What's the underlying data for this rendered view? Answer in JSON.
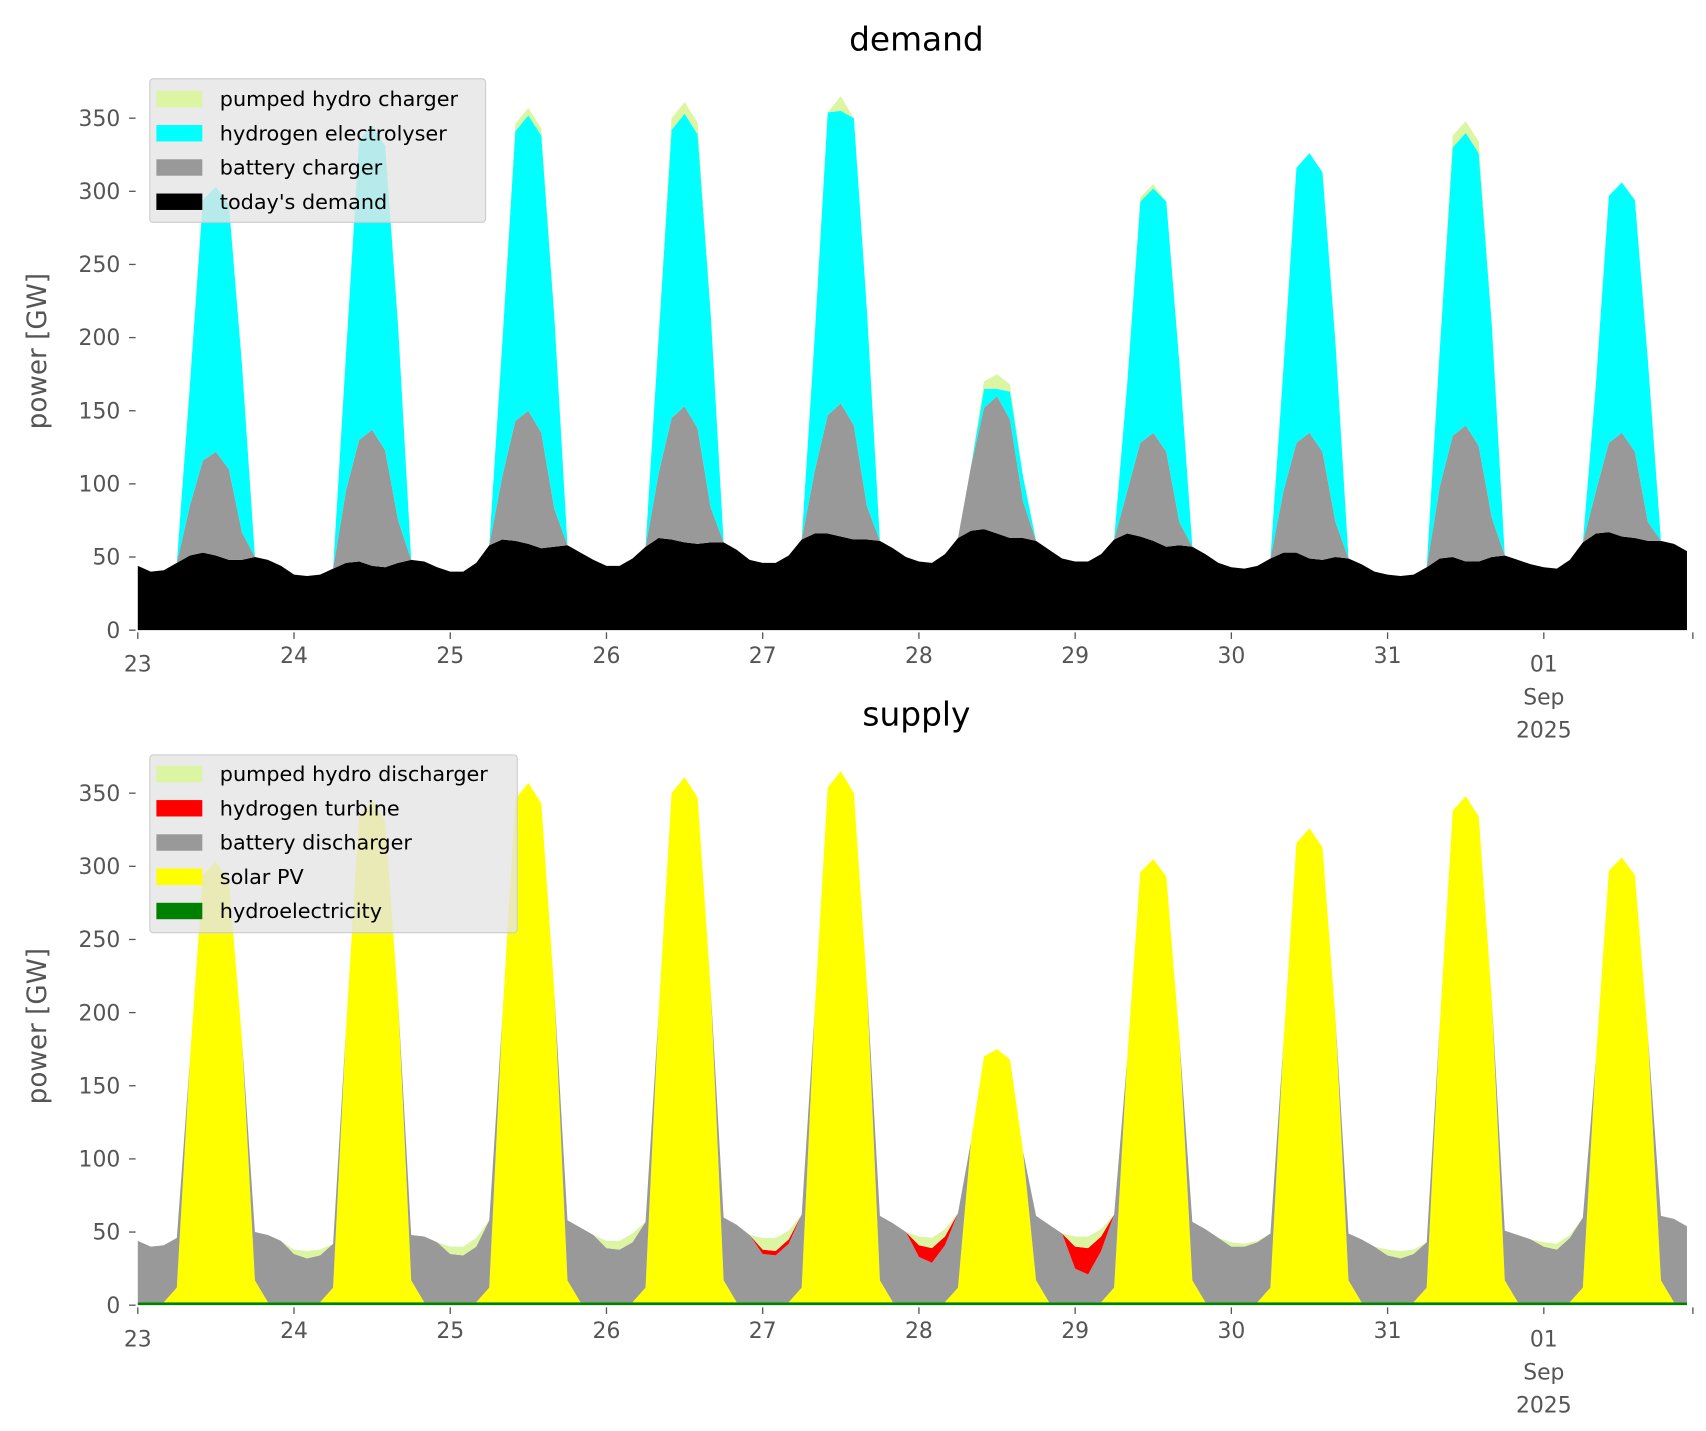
{
  "chart_data": [
    {
      "type": "area",
      "title": "demand",
      "ylabel": "power [GW]",
      "xlabel": "",
      "ylim": [
        0,
        385
      ],
      "start": "2025-08-23 00:00",
      "step_hours": 2,
      "xticks": [
        "23",
        "24",
        "25",
        "26",
        "27",
        "28",
        "29",
        "30",
        "31",
        "01"
      ],
      "xtick_sub": [
        "Sep",
        "2025"
      ],
      "yticks": [
        0,
        50,
        100,
        150,
        200,
        250,
        300,
        350
      ],
      "legend_position": "top-left",
      "series": [
        {
          "name": "today's demand",
          "color": "#000000",
          "values": [
            44,
            40,
            41,
            46,
            51,
            53,
            51,
            48,
            48,
            50,
            48,
            44,
            38,
            37,
            38,
            42,
            46,
            47,
            44,
            43,
            46,
            48,
            47,
            43,
            40,
            40,
            46,
            58,
            62,
            61,
            59,
            56,
            57,
            58,
            53,
            48,
            44,
            44,
            49,
            57,
            63,
            62,
            60,
            59,
            60,
            60,
            55,
            48,
            46,
            46,
            51,
            62,
            66,
            66,
            64,
            62,
            62,
            61,
            56,
            50,
            47,
            46,
            52,
            63,
            68,
            69,
            66,
            63,
            63,
            61,
            55,
            49,
            47,
            47,
            52,
            62,
            66,
            64,
            61,
            57,
            58,
            57,
            52,
            46,
            43,
            42,
            44,
            49,
            53,
            53,
            49,
            48,
            50,
            49,
            45,
            40,
            38,
            37,
            38,
            43,
            49,
            50,
            47,
            47,
            50,
            51,
            48,
            45,
            43,
            42,
            48,
            60,
            66,
            67,
            64,
            63,
            61,
            61,
            59,
            54
          ]
        },
        {
          "name": "battery charger",
          "color": "#999999",
          "values": [
            0,
            0,
            0,
            0,
            34,
            63,
            71,
            62,
            19,
            0,
            0,
            0,
            0,
            0,
            0,
            0,
            50,
            83,
            93,
            80,
            29,
            0,
            0,
            0,
            0,
            0,
            0,
            0,
            43,
            82,
            91,
            79,
            26,
            0,
            0,
            0,
            0,
            0,
            0,
            0,
            44,
            83,
            93,
            79,
            24,
            0,
            0,
            0,
            0,
            0,
            0,
            0,
            43,
            81,
            91,
            78,
            23,
            0,
            0,
            0,
            0,
            0,
            0,
            0,
            44,
            83,
            94,
            81,
            25,
            0,
            0,
            0,
            0,
            0,
            0,
            0,
            29,
            64,
            74,
            65,
            16,
            0,
            0,
            0,
            0,
            0,
            0,
            0,
            42,
            75,
            86,
            74,
            24,
            0,
            0,
            0,
            0,
            0,
            0,
            0,
            49,
            83,
            93,
            79,
            27,
            0,
            0,
            0,
            0,
            0,
            0,
            0,
            29,
            61,
            71,
            59,
            13,
            0,
            0,
            0
          ]
        },
        {
          "name": "hydrogen electrolyser",
          "color": "#00ffff",
          "values": [
            0,
            0,
            0,
            0,
            82,
            178,
            181,
            181,
            115,
            0,
            0,
            0,
            0,
            0,
            0,
            0,
            94,
            205,
            208,
            208,
            132,
            0,
            0,
            0,
            0,
            0,
            0,
            0,
            91,
            198,
            202,
            203,
            131,
            0,
            0,
            0,
            0,
            0,
            0,
            0,
            92,
            197,
            200,
            201,
            133,
            0,
            0,
            0,
            0,
            0,
            0,
            0,
            92,
            207,
            200,
            210,
            134,
            0,
            0,
            0,
            0,
            0,
            0,
            0,
            0,
            13,
            5,
            19,
            17,
            0,
            0,
            0,
            0,
            0,
            0,
            0,
            73,
            165,
            167,
            171,
            109,
            0,
            0,
            0,
            0,
            0,
            0,
            0,
            84,
            188,
            191,
            191,
            122,
            0,
            0,
            0,
            0,
            0,
            0,
            0,
            93,
            197,
            200,
            200,
            132,
            0,
            0,
            0,
            0,
            0,
            0,
            0,
            73,
            169,
            171,
            172,
            110,
            0,
            0,
            0
          ]
        },
        {
          "name": "pumped hydro charger",
          "color": "#dbf5a3",
          "values": [
            0,
            0,
            0,
            0,
            0,
            0,
            0,
            0,
            0,
            0,
            0,
            0,
            0,
            0,
            0,
            0,
            0,
            0,
            0,
            0,
            0,
            0,
            0,
            0,
            0,
            0,
            0,
            0,
            0,
            5,
            5,
            5,
            0,
            0,
            0,
            0,
            0,
            0,
            0,
            0,
            0,
            8,
            8,
            8,
            0,
            0,
            0,
            0,
            0,
            0,
            0,
            0,
            0,
            0,
            10,
            0,
            0,
            0,
            0,
            0,
            0,
            0,
            0,
            0,
            0,
            5,
            10,
            5,
            0,
            0,
            0,
            0,
            0,
            0,
            0,
            0,
            0,
            3,
            3,
            0,
            0,
            0,
            0,
            0,
            0,
            0,
            0,
            0,
            0,
            0,
            0,
            0,
            0,
            0,
            0,
            0,
            0,
            0,
            0,
            0,
            0,
            8,
            8,
            8,
            0,
            0,
            0,
            0,
            0,
            0,
            0,
            0,
            0,
            0,
            0,
            0,
            0,
            0,
            0,
            0
          ]
        }
      ]
    },
    {
      "type": "area",
      "title": "supply",
      "ylabel": "power [GW]",
      "xlabel": "",
      "ylim": [
        0,
        385
      ],
      "start": "2025-08-23 00:00",
      "step_hours": 2,
      "xticks": [
        "23",
        "24",
        "25",
        "26",
        "27",
        "28",
        "29",
        "30",
        "31",
        "01"
      ],
      "xtick_sub": [
        "Sep",
        "2025"
      ],
      "yticks": [
        0,
        50,
        100,
        150,
        200,
        250,
        300,
        350
      ],
      "legend_position": "top-left",
      "series": [
        {
          "name": "hydroelectricity",
          "color": "#008000",
          "values": [
            2,
            2,
            2,
            2,
            2,
            2,
            2,
            2,
            2,
            2,
            2,
            2,
            2,
            2,
            2,
            2,
            2,
            2,
            2,
            2,
            2,
            2,
            2,
            2,
            2,
            2,
            2,
            2,
            2,
            2,
            2,
            2,
            2,
            2,
            2,
            2,
            2,
            2,
            2,
            2,
            2,
            2,
            2,
            2,
            2,
            2,
            2,
            2,
            2,
            2,
            2,
            2,
            2,
            2,
            2,
            2,
            2,
            2,
            2,
            2,
            2,
            2,
            2,
            2,
            2,
            2,
            2,
            2,
            2,
            2,
            2,
            2,
            2,
            2,
            2,
            2,
            2,
            2,
            2,
            2,
            2,
            2,
            2,
            2,
            2,
            2,
            2,
            2,
            2,
            2,
            2,
            2,
            2,
            2,
            2,
            2,
            2,
            2,
            2,
            2,
            2,
            2,
            2,
            2,
            2,
            2,
            2,
            2,
            2,
            2,
            2,
            2,
            2,
            2,
            2,
            2,
            2,
            2,
            2,
            2
          ]
        },
        {
          "name": "solar PV",
          "color": "#ffff00",
          "values": [
            0,
            0,
            0,
            10,
            165,
            292,
            301,
            289,
            180,
            15,
            0,
            0,
            0,
            0,
            0,
            10,
            188,
            333,
            343,
            329,
            205,
            15,
            0,
            0,
            0,
            0,
            0,
            10,
            194,
            344,
            355,
            341,
            212,
            15,
            0,
            0,
            0,
            0,
            0,
            10,
            197,
            348,
            359,
            345,
            215,
            15,
            0,
            0,
            0,
            0,
            0,
            10,
            199,
            352,
            363,
            348,
            217,
            15,
            0,
            0,
            0,
            0,
            0,
            10,
            110,
            168,
            173,
            166,
            103,
            15,
            0,
            0,
            0,
            0,
            0,
            10,
            166,
            294,
            303,
            291,
            181,
            15,
            0,
            0,
            0,
            0,
            0,
            10,
            177,
            314,
            324,
            311,
            194,
            15,
            0,
            0,
            0,
            0,
            0,
            10,
            189,
            336,
            346,
            332,
            207,
            15,
            0,
            0,
            0,
            0,
            0,
            10,
            166,
            295,
            304,
            292,
            182,
            15,
            0,
            0
          ]
        },
        {
          "name": "battery discharger",
          "color": "#999999",
          "values": [
            42,
            38,
            39,
            34,
            0,
            0,
            0,
            0,
            0,
            33,
            46,
            42,
            33,
            30,
            32,
            30,
            0,
            0,
            0,
            0,
            0,
            31,
            45,
            41,
            33,
            32,
            38,
            46,
            0,
            0,
            0,
            0,
            0,
            41,
            51,
            46,
            37,
            36,
            41,
            45,
            0,
            0,
            0,
            0,
            0,
            43,
            53,
            46,
            33,
            32,
            40,
            50,
            0,
            0,
            0,
            0,
            0,
            44,
            54,
            48,
            31,
            27,
            39,
            51,
            0,
            0,
            0,
            0,
            0,
            44,
            53,
            47,
            23,
            19,
            35,
            50,
            0,
            0,
            0,
            0,
            0,
            40,
            50,
            44,
            38,
            38,
            41,
            37,
            0,
            0,
            0,
            0,
            0,
            32,
            43,
            38,
            32,
            30,
            33,
            31,
            0,
            0,
            0,
            0,
            0,
            34,
            46,
            43,
            38,
            36,
            44,
            48,
            0,
            0,
            0,
            0,
            0,
            44,
            57,
            52
          ]
        },
        {
          "name": "hydrogen turbine",
          "color": "#ff0000",
          "values": [
            0,
            0,
            0,
            0,
            0,
            0,
            0,
            0,
            0,
            0,
            0,
            0,
            0,
            0,
            0,
            0,
            0,
            0,
            0,
            0,
            0,
            0,
            0,
            0,
            0,
            0,
            0,
            0,
            0,
            0,
            0,
            0,
            0,
            0,
            0,
            0,
            0,
            0,
            0,
            0,
            0,
            0,
            0,
            0,
            0,
            0,
            0,
            0,
            3,
            3,
            3,
            0,
            0,
            0,
            0,
            0,
            0,
            0,
            0,
            0,
            8,
            10,
            6,
            0,
            0,
            0,
            0,
            0,
            0,
            0,
            0,
            0,
            15,
            18,
            10,
            0,
            0,
            0,
            0,
            0,
            0,
            0,
            0,
            0,
            0,
            0,
            0,
            0,
            0,
            0,
            0,
            0,
            0,
            0,
            0,
            0,
            0,
            0,
            0,
            0,
            0,
            0,
            0,
            0,
            0,
            0,
            0,
            0,
            0,
            0,
            0,
            0,
            0,
            0,
            0,
            0,
            0,
            0,
            0,
            0
          ]
        },
        {
          "name": "pumped hydro discharger",
          "color": "#dbf5a3",
          "values": [
            0,
            0,
            0,
            0,
            0,
            0,
            0,
            0,
            0,
            0,
            0,
            0,
            3,
            5,
            4,
            0,
            0,
            0,
            0,
            0,
            0,
            0,
            0,
            0,
            5,
            6,
            6,
            0,
            0,
            0,
            0,
            0,
            0,
            0,
            0,
            0,
            5,
            6,
            6,
            0,
            0,
            0,
            0,
            0,
            0,
            0,
            0,
            0,
            8,
            9,
            6,
            0,
            0,
            0,
            0,
            0,
            0,
            0,
            0,
            0,
            6,
            7,
            5,
            0,
            0,
            0,
            0,
            0,
            0,
            0,
            0,
            0,
            7,
            8,
            5,
            0,
            0,
            0,
            0,
            0,
            0,
            0,
            0,
            0,
            3,
            2,
            1,
            0,
            0,
            0,
            0,
            0,
            0,
            0,
            0,
            0,
            4,
            5,
            3,
            0,
            0,
            0,
            0,
            0,
            0,
            0,
            0,
            0,
            3,
            4,
            2,
            0,
            0,
            0,
            0,
            0,
            0,
            0,
            0,
            0
          ]
        }
      ]
    }
  ]
}
